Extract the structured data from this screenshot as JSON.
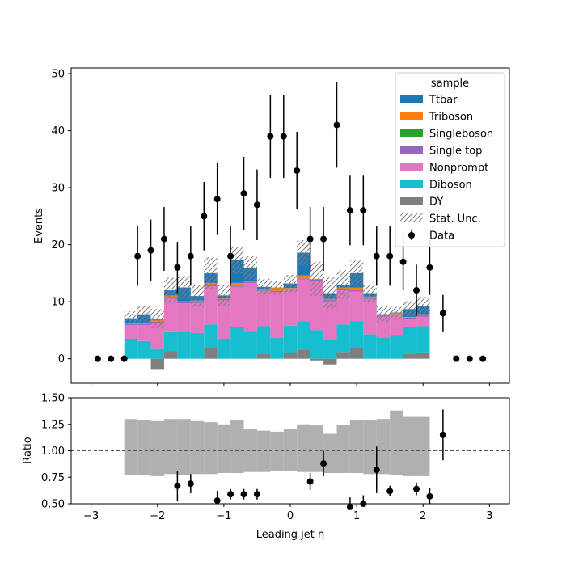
{
  "chart_data": {
    "type": "bar",
    "stacked": true,
    "bins": {
      "start": -2.5,
      "width": 0.2
    },
    "main_panel": {
      "ylabel": "Events",
      "ylim": [
        -4.3,
        51
      ],
      "yticks": [
        0,
        10,
        20,
        30,
        40,
        50
      ]
    },
    "ratio_panel": {
      "ylabel": "Ratio",
      "ylim": [
        0.5,
        1.5
      ],
      "yticks": [
        "0.50",
        "0.75",
        "1.00",
        "1.25",
        "1.50"
      ],
      "reference_line": 1.0
    },
    "xlabel": "Leading jet  η",
    "xlim": [
      -3.3,
      3.3
    ],
    "xticks": [
      -3,
      -2,
      -1,
      0,
      1,
      2,
      3
    ],
    "xtick_labels": [
      "−3",
      "−2",
      "−1",
      "0",
      "1",
      "2",
      "3"
    ],
    "legend": {
      "title": "sample",
      "placement": "top-right",
      "entries": [
        "Ttbar",
        "Triboson",
        "Singleboson",
        "Single top",
        "Nonprompt",
        "Diboson",
        "DY",
        "Stat. Unc.",
        "Data"
      ]
    },
    "colors": {
      "Ttbar": "#1f77b4",
      "Triboson": "#ff7f0e",
      "Singleboson": "#2ca02c",
      "Single top": "#9467bd",
      "Nonprompt": "#e377c2",
      "Diboson": "#17becf",
      "DY": "#7f7f7f",
      "Stat. Unc.": "#808080",
      "Data": "#000000",
      "ratio_band": "#b0b0b0"
    },
    "series": [
      {
        "name": "DY",
        "values": [
          0,
          0,
          -1.8,
          1.3,
          0,
          0,
          2.0,
          0,
          0,
          0,
          0.8,
          0,
          1.0,
          1.6,
          -0.3,
          -1.0,
          1.2,
          1.8,
          0,
          0,
          0,
          0.9,
          1.1
        ]
      },
      {
        "name": "Diboson",
        "values": [
          3.5,
          3.1,
          1.7,
          3.5,
          4.7,
          4.5,
          4.0,
          3.5,
          5.6,
          4.9,
          4.9,
          3.7,
          4.8,
          5.0,
          5.0,
          3.3,
          4.8,
          4.8,
          4.3,
          3.7,
          4.2,
          4.6,
          4.6
        ]
      },
      {
        "name": "Nonprompt",
        "values": [
          2.4,
          2.8,
          4.6,
          5.8,
          5.0,
          5.3,
          6.7,
          6.8,
          7.0,
          8.4,
          6.2,
          8.0,
          6.3,
          7.3,
          8.7,
          6.8,
          6.0,
          5.2,
          6.2,
          3.7,
          3.4,
          1.5,
          1.7
        ]
      },
      {
        "name": "Single top",
        "values": [
          0.2,
          0.2,
          0.2,
          0.2,
          0.2,
          0.2,
          0.2,
          0.2,
          0.2,
          0.2,
          0.2,
          0.2,
          0.2,
          0.2,
          0.2,
          0.2,
          0.2,
          0.2,
          0.2,
          0.2,
          0.2,
          0.2,
          0.2
        ]
      },
      {
        "name": "Singleboson",
        "values": [
          0,
          0,
          0,
          0,
          0,
          0,
          0,
          0,
          0,
          0,
          0,
          0,
          0,
          0,
          0,
          0,
          0,
          0,
          0,
          0,
          0,
          0,
          0
        ]
      },
      {
        "name": "Triboson",
        "values": [
          0.1,
          0.2,
          0.3,
          0.3,
          0.2,
          0.2,
          0.4,
          0.2,
          0.5,
          0.2,
          0.1,
          0.6,
          0.1,
          0.5,
          0.1,
          0.2,
          0.3,
          0.5,
          0.2,
          0.1,
          0.2,
          0.1,
          0.2
        ]
      },
      {
        "name": "Ttbar",
        "values": [
          0.9,
          1.5,
          0.2,
          0.9,
          2.4,
          0.8,
          1.7,
          0.4,
          4.0,
          2.3,
          0.4,
          0,
          0.8,
          4.0,
          0,
          1.0,
          0.5,
          2.5,
          0.6,
          0.1,
          0.1,
          1.4,
          1.5
        ]
      }
    ],
    "stat_unc_half": [
      1.2,
      1.4,
      1.7,
      2.2,
      2.0,
      1.9,
      2.8,
      1.8,
      2.3,
      2.1,
      1.4,
      1.1,
      1.5,
      2.2,
      3.0,
      2.8,
      2.5,
      2.2,
      1.5,
      1.4,
      1.0,
      1.4,
      1.5
    ],
    "ratio_band": {
      "lower": [
        0.77,
        0.77,
        0.76,
        0.78,
        0.77,
        0.78,
        0.78,
        0.79,
        0.79,
        0.8,
        0.8,
        0.81,
        0.81,
        0.8,
        0.8,
        0.79,
        0.79,
        0.79,
        0.78,
        0.78,
        0.77,
        0.76,
        0.76
      ],
      "upper": [
        1.3,
        1.29,
        1.28,
        1.3,
        1.3,
        1.28,
        1.27,
        1.25,
        1.29,
        1.21,
        1.19,
        1.18,
        1.21,
        1.25,
        1.24,
        1.16,
        1.24,
        1.29,
        1.29,
        1.3,
        1.38,
        1.32,
        1.32
      ]
    },
    "data_points": [
      {
        "x": -2.9,
        "y": 0,
        "err": 0
      },
      {
        "x": -2.7,
        "y": 0,
        "err": 0
      },
      {
        "x": -2.5,
        "y": 0,
        "err": 0
      },
      {
        "x": -2.3,
        "y": 18,
        "err": 5.2
      },
      {
        "x": -2.1,
        "y": 19,
        "err": 5.4
      },
      {
        "x": -1.9,
        "y": 21,
        "err": 5.6
      },
      {
        "x": -1.7,
        "y": 16,
        "err": 4.5
      },
      {
        "x": -1.5,
        "y": 18,
        "err": 5.2
      },
      {
        "x": -1.3,
        "y": 25,
        "err": 6.0
      },
      {
        "x": -1.1,
        "y": 28,
        "err": 6.3
      },
      {
        "x": -0.9,
        "y": 18,
        "err": 5.2
      },
      {
        "x": -0.7,
        "y": 29,
        "err": 6.4
      },
      {
        "x": -0.5,
        "y": 27,
        "err": 6.2
      },
      {
        "x": -0.3,
        "y": 39,
        "err": 7.3
      },
      {
        "x": -0.1,
        "y": 39,
        "err": 7.3
      },
      {
        "x": 0.1,
        "y": 33,
        "err": 6.8
      },
      {
        "x": 0.3,
        "y": 21,
        "err": 5.6
      },
      {
        "x": 0.5,
        "y": 21,
        "err": 5.6
      },
      {
        "x": 0.7,
        "y": 41,
        "err": 7.5
      },
      {
        "x": 0.9,
        "y": 26,
        "err": 6.1
      },
      {
        "x": 1.1,
        "y": 26,
        "err": 6.1
      },
      {
        "x": 1.3,
        "y": 18,
        "err": 5.2
      },
      {
        "x": 1.5,
        "y": 18,
        "err": 5.2
      },
      {
        "x": 1.7,
        "y": 17,
        "err": 5.0
      },
      {
        "x": 1.9,
        "y": 12,
        "err": 4.5
      },
      {
        "x": 2.1,
        "y": 16,
        "err": 4.8
      },
      {
        "x": 2.3,
        "y": 8,
        "err": 3.2
      },
      {
        "x": 2.5,
        "y": 0,
        "err": 0
      },
      {
        "x": 2.7,
        "y": 0,
        "err": 0
      },
      {
        "x": 2.9,
        "y": 0,
        "err": 0
      }
    ],
    "ratio_points": [
      {
        "x": -1.7,
        "y": 0.67,
        "err": 0.14
      },
      {
        "x": -1.5,
        "y": 0.69,
        "err": 0.09
      },
      {
        "x": -1.1,
        "y": 0.53,
        "err": 0.09
      },
      {
        "x": -0.9,
        "y": 0.59,
        "err": 0.05
      },
      {
        "x": -0.7,
        "y": 0.59,
        "err": 0.05
      },
      {
        "x": -0.5,
        "y": 0.59,
        "err": 0.05
      },
      {
        "x": 0.3,
        "y": 0.71,
        "err": 0.08
      },
      {
        "x": 0.5,
        "y": 0.88,
        "err": 0.12
      },
      {
        "x": 0.9,
        "y": 0.47,
        "err": 0.09
      },
      {
        "x": 1.1,
        "y": 0.5,
        "err": 0.08
      },
      {
        "x": 1.3,
        "y": 0.82,
        "err": 0.22
      },
      {
        "x": 1.5,
        "y": 0.62,
        "err": 0.05
      },
      {
        "x": 1.9,
        "y": 0.64,
        "err": 0.06
      },
      {
        "x": 2.1,
        "y": 0.57,
        "err": 0.08
      },
      {
        "x": 2.3,
        "y": 1.15,
        "err": 0.24
      }
    ]
  }
}
